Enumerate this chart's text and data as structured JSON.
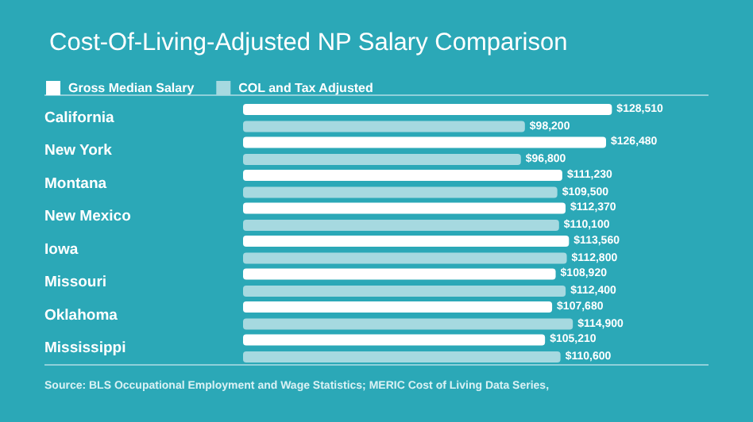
{
  "chart_data": {
    "type": "bar",
    "orientation": "horizontal",
    "title": "Cost-Of-Living-Adjusted NP Salary Comparison",
    "categories": [
      "California",
      "New York",
      "Montana",
      "New Mexico",
      "Iowa",
      "Missouri",
      "Oklahoma",
      "Mississippi"
    ],
    "series": [
      {
        "name": "Gross Median Salary",
        "color": "#ffffff",
        "values": [
          128510,
          126480,
          111230,
          112370,
          113560,
          108920,
          107680,
          105210
        ],
        "value_labels": [
          "$128,510",
          "$126,480",
          "$111,230",
          "$112,370",
          "$113,560",
          "$108,920",
          "$107,680",
          "$105,210"
        ]
      },
      {
        "name": "COL and Tax Adjusted",
        "color": "#a6d9e0",
        "values": [
          98200,
          96800,
          109500,
          110100,
          112800,
          112400,
          114900,
          110600
        ],
        "value_labels": [
          "$98,200",
          "$96,800",
          "$109,500",
          "$110,100",
          "$112,800",
          "$112,400",
          "$114,900",
          "$110,600"
        ]
      }
    ],
    "legend": "top left",
    "annotations": [
      "Source: BLS Occupational Employment and Wage Statistics; MERIC Cost of Living Data Series,"
    ]
  }
}
